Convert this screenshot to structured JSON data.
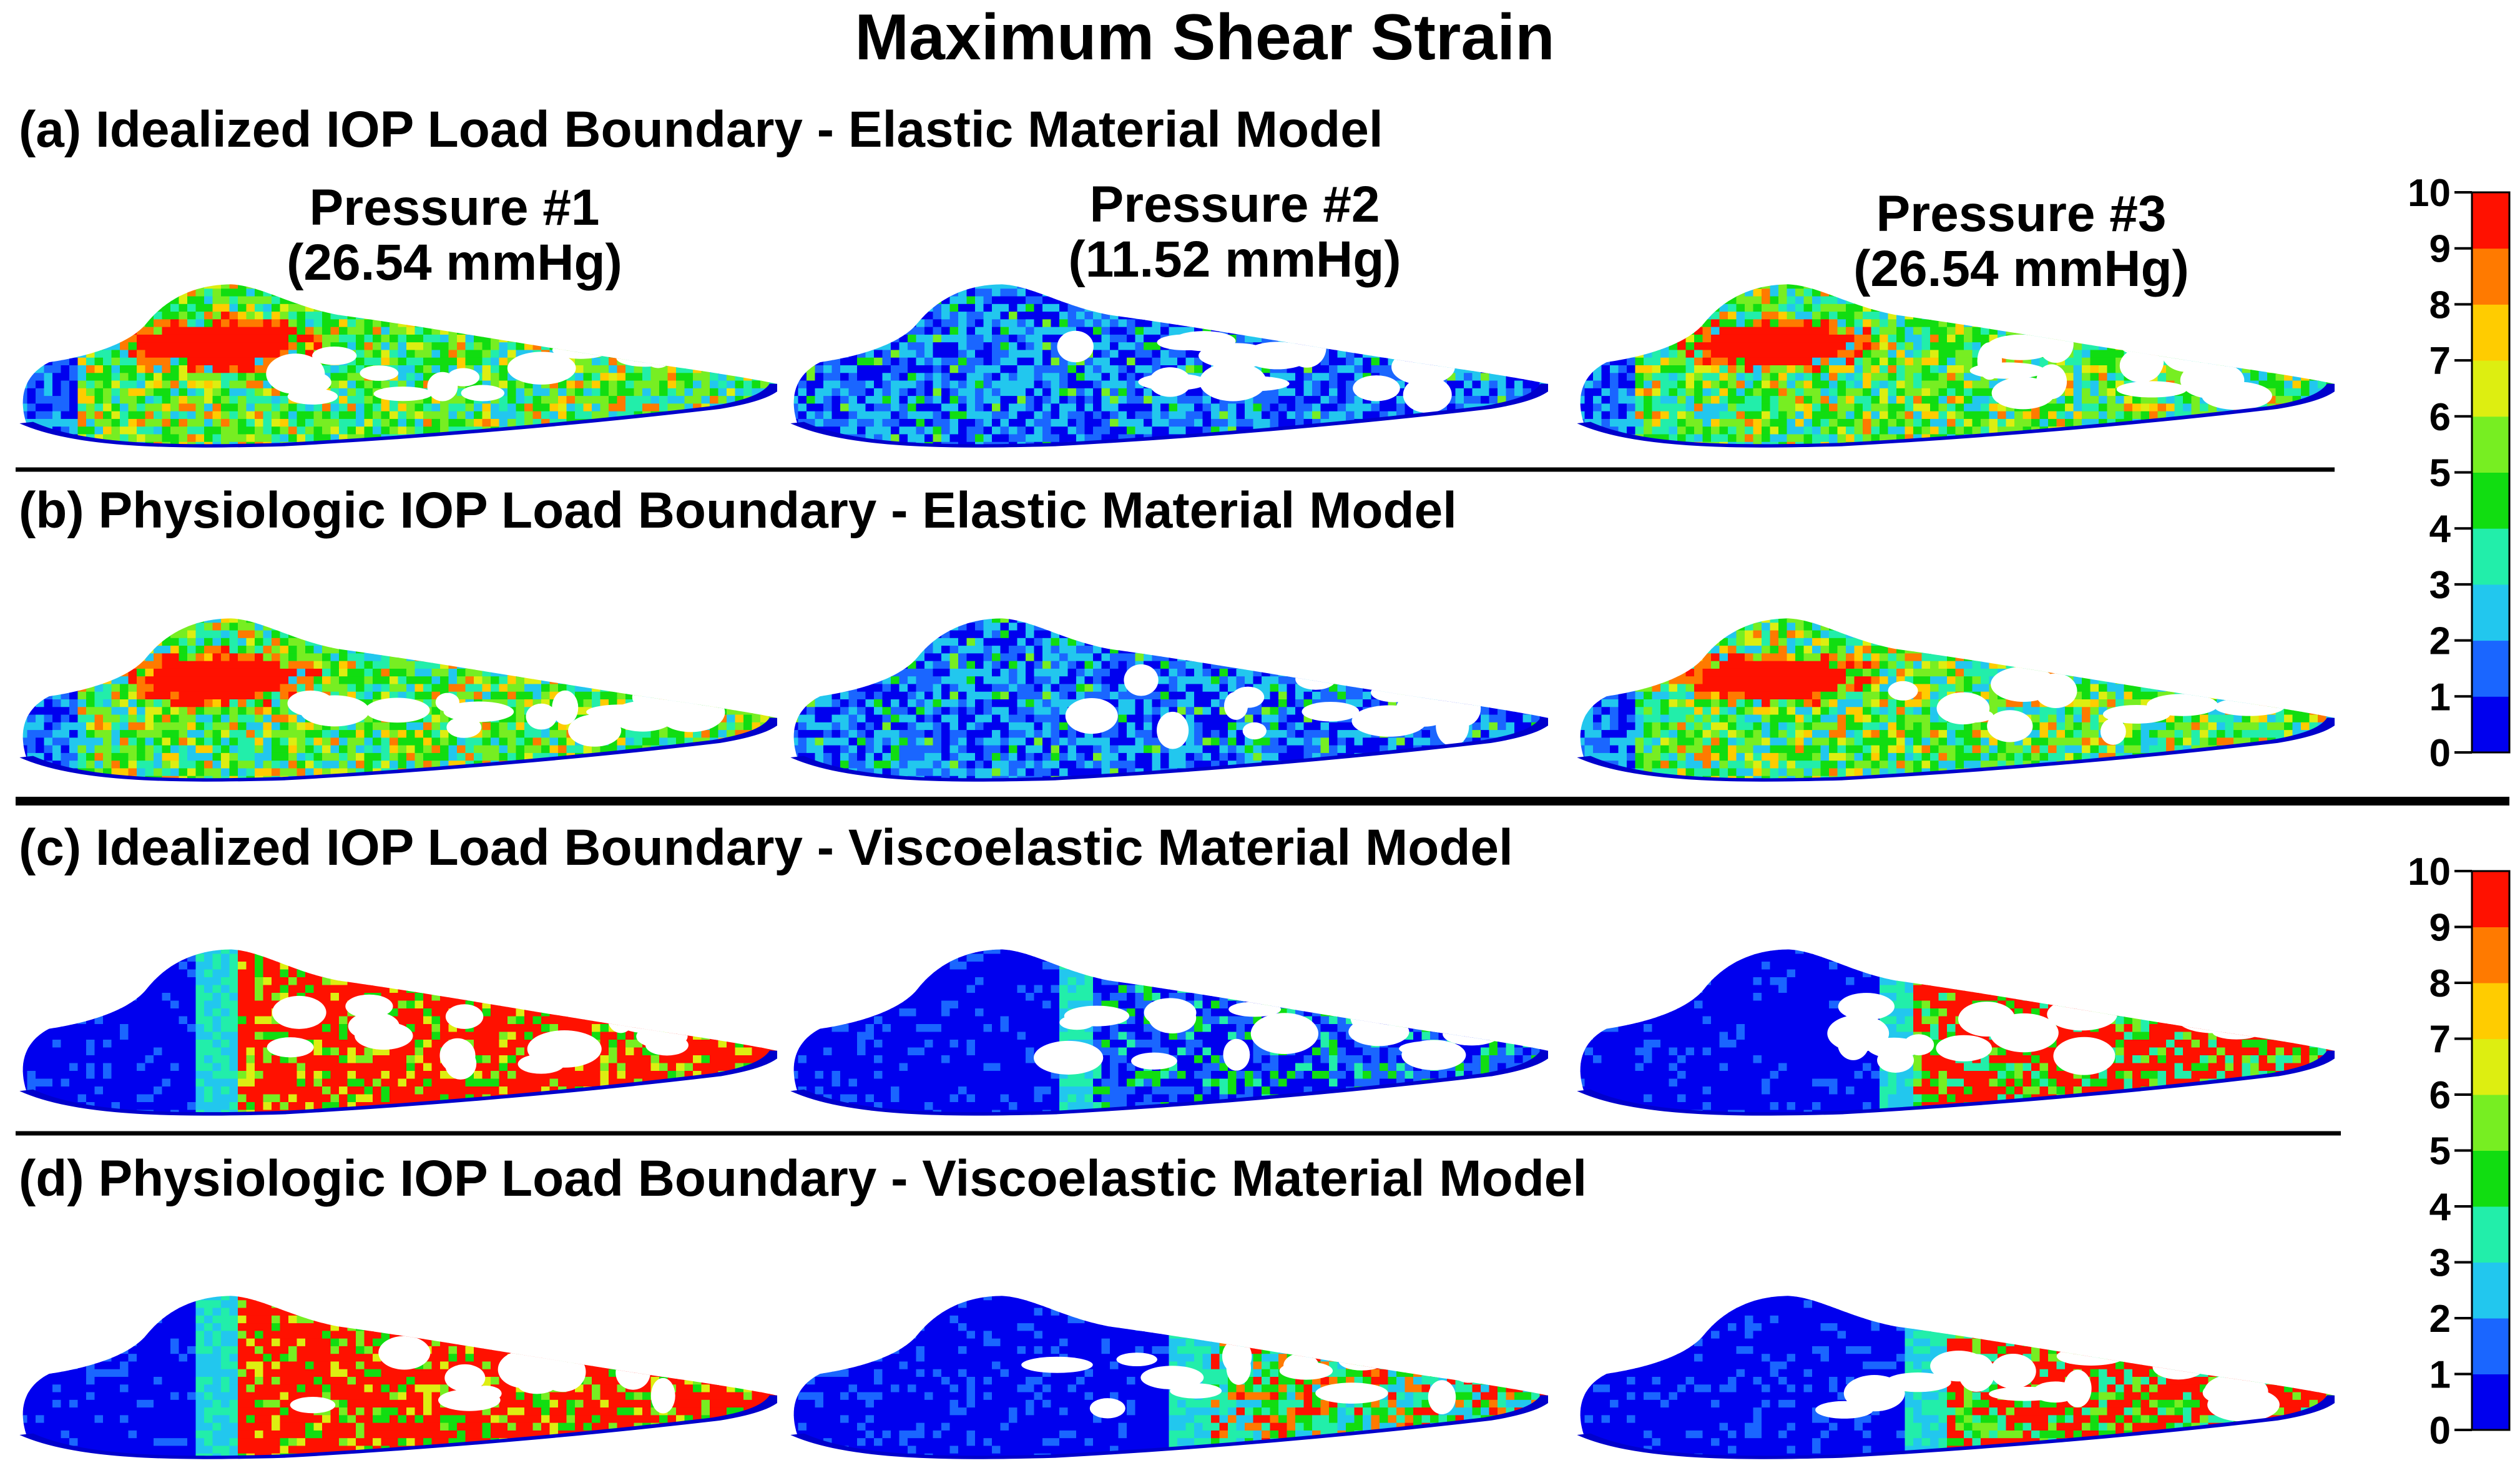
{
  "title": "Maximum Shear Strain",
  "rows": [
    {
      "label": "(a) Idealized IOP Load Boundary - Elastic Material Model",
      "scheme": "elastic-idealized"
    },
    {
      "label": "(b) Physiologic IOP Load Boundary - Elastic Material Model",
      "scheme": "elastic-physiologic"
    },
    {
      "label": "(c) Idealized IOP Load Boundary - Viscoelastic Material Model",
      "scheme": "visco-idealized"
    },
    {
      "label": "(d) Physiologic IOP Load Boundary - Viscoelastic Material Model",
      "scheme": "visco-physiologic"
    }
  ],
  "pressures": [
    {
      "name": "Pressure #1",
      "value": "(26.54 mmHg)",
      "color": "#1a1aff"
    },
    {
      "name": "Pressure #2",
      "value": "(11.52 mmHg)",
      "color": "#33ee22"
    },
    {
      "name": "Pressure #3",
      "value": "(26.54 mmHg)",
      "color": "#ff22ff"
    }
  ],
  "colorbar": {
    "ticks": [
      "10",
      "9",
      "8",
      "7",
      "6",
      "5",
      "4",
      "3",
      "2",
      "1",
      "0"
    ],
    "colors": [
      "#0000ee",
      "#1a66ff",
      "#22c7ee",
      "#22eeaa",
      "#11dd11",
      "#77ee22",
      "#ddee11",
      "#ffcc00",
      "#ff7a00",
      "#ff1100"
    ]
  }
}
